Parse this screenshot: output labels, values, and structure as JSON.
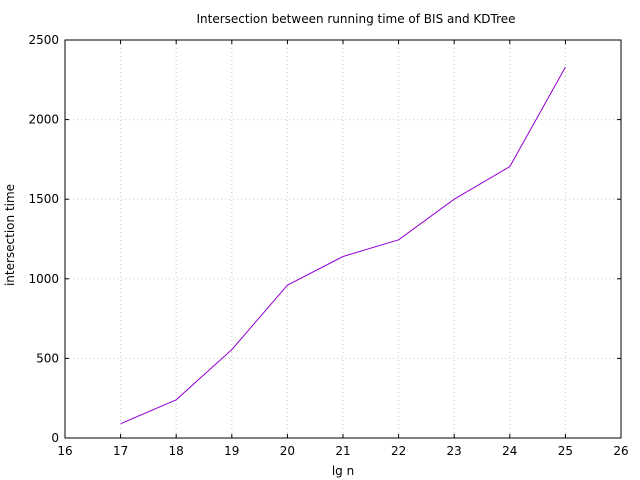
{
  "chart_data": {
    "type": "line",
    "title": "Intersection between running time of BIS and KDTree",
    "xlabel": "lg n",
    "ylabel": "intersection time",
    "xlim": [
      16,
      26
    ],
    "ylim": [
      0,
      2500
    ],
    "xticks": [
      16,
      17,
      18,
      19,
      20,
      21,
      22,
      23,
      24,
      25,
      26
    ],
    "yticks": [
      0,
      500,
      1000,
      1500,
      2000,
      2500
    ],
    "grid": true,
    "series": [
      {
        "color": "#9400D3",
        "x": [
          17,
          18,
          19,
          20,
          21,
          22,
          23,
          24,
          25
        ],
        "y": [
          90,
          240,
          555,
          960,
          1140,
          1245,
          1500,
          1705,
          2330
        ]
      }
    ]
  }
}
